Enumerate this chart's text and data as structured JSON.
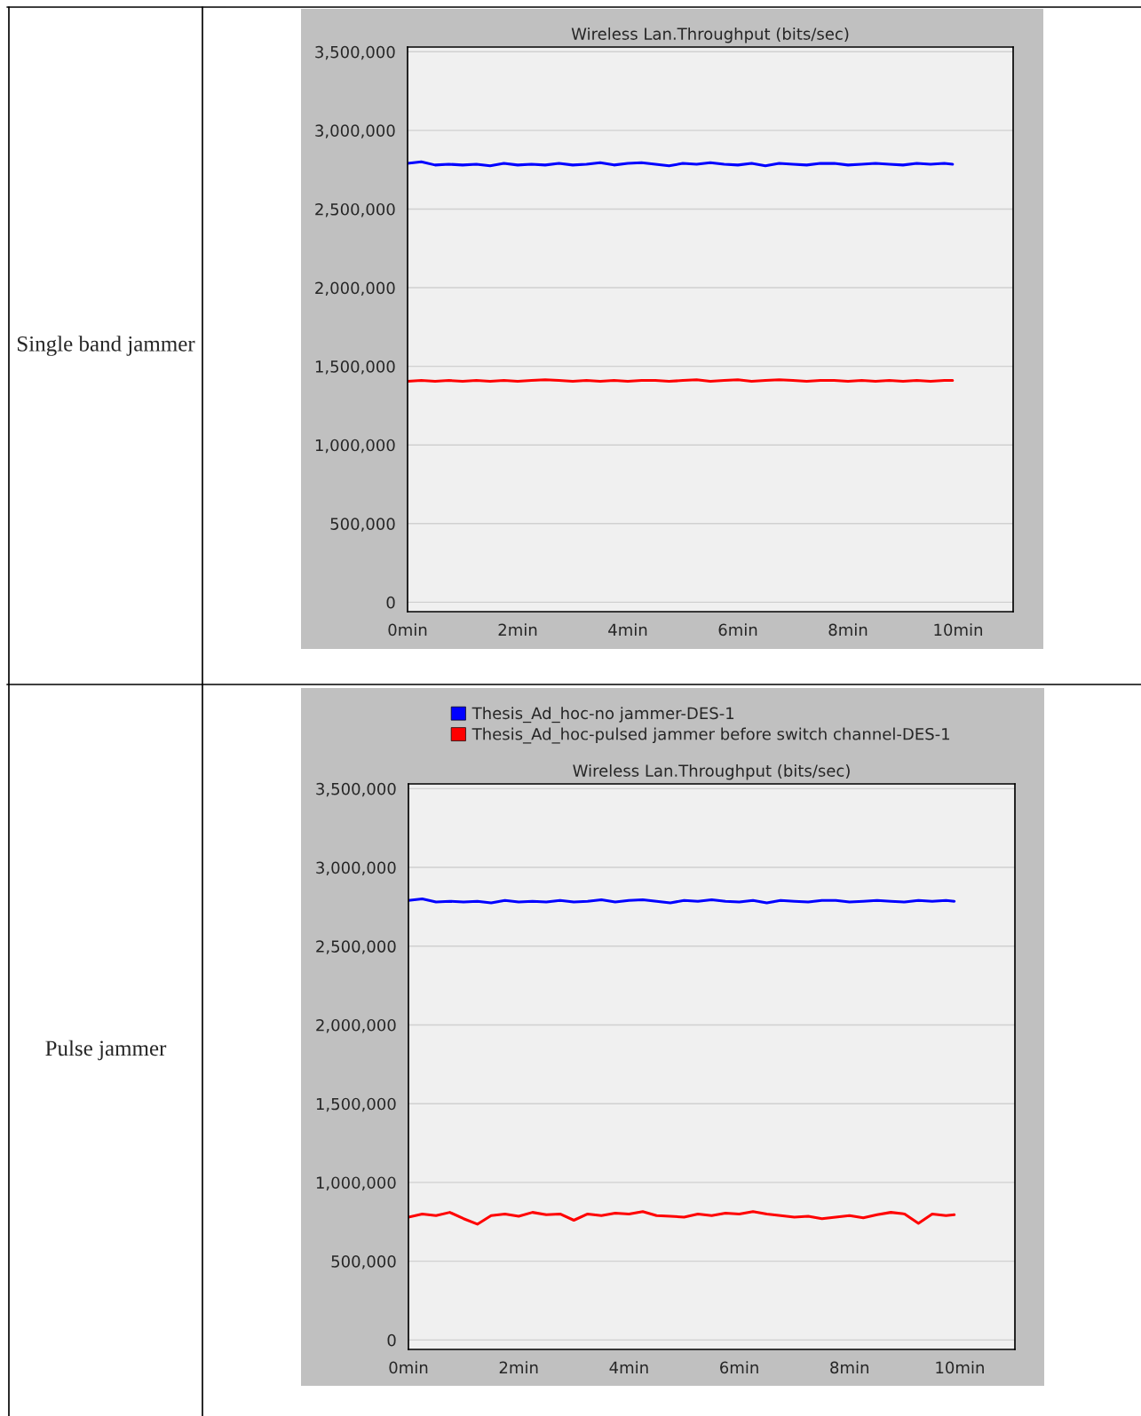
{
  "chart_data": [
    {
      "type": "line",
      "title": "Wireless Lan.Throughput (bits/sec)",
      "annotations": [
        "Single band jammer"
      ],
      "x": [
        0,
        0.25,
        0.5,
        0.75,
        1,
        1.25,
        1.5,
        1.75,
        2,
        2.25,
        2.5,
        2.75,
        3,
        3.25,
        3.5,
        3.75,
        4,
        4.25,
        4.5,
        4.75,
        5,
        5.25,
        5.5,
        5.75,
        6,
        6.25,
        6.5,
        6.75,
        7,
        7.25,
        7.5,
        7.75,
        8,
        8.25,
        8.5,
        8.75,
        9,
        9.25,
        9.5,
        9.75,
        9.9
      ],
      "series": [
        {
          "color": "#0000ff",
          "values": [
            2790000,
            2800000,
            2780000,
            2785000,
            2780000,
            2785000,
            2775000,
            2790000,
            2780000,
            2785000,
            2780000,
            2790000,
            2780000,
            2785000,
            2795000,
            2780000,
            2790000,
            2795000,
            2785000,
            2775000,
            2790000,
            2785000,
            2795000,
            2785000,
            2780000,
            2790000,
            2775000,
            2790000,
            2785000,
            2780000,
            2790000,
            2790000,
            2780000,
            2785000,
            2790000,
            2785000,
            2780000,
            2790000,
            2785000,
            2790000,
            2785000
          ]
        },
        {
          "color": "#ff0000",
          "values": [
            1405000,
            1410000,
            1405000,
            1410000,
            1405000,
            1410000,
            1405000,
            1410000,
            1405000,
            1410000,
            1415000,
            1410000,
            1405000,
            1410000,
            1405000,
            1410000,
            1405000,
            1410000,
            1410000,
            1405000,
            1410000,
            1415000,
            1405000,
            1410000,
            1415000,
            1405000,
            1410000,
            1415000,
            1410000,
            1405000,
            1410000,
            1410000,
            1405000,
            1410000,
            1405000,
            1410000,
            1405000,
            1410000,
            1405000,
            1410000,
            1410000
          ]
        }
      ],
      "xlim": [
        0,
        11
      ],
      "xticks": [
        {
          "value": 0,
          "label": "0min"
        },
        {
          "value": 2,
          "label": "2min"
        },
        {
          "value": 4,
          "label": "4min"
        },
        {
          "value": 6,
          "label": "6min"
        },
        {
          "value": 8,
          "label": "8min"
        },
        {
          "value": 10,
          "label": "10min"
        }
      ],
      "ylim": [
        -60000,
        3530000
      ],
      "yticks": [
        0,
        {
          "value": 500000,
          "label": "500,000"
        },
        {
          "value": 1000000,
          "label": "1,000,000"
        },
        {
          "value": 1500000,
          "label": "1,500,000"
        },
        {
          "value": 2000000,
          "label": "2,000,000"
        },
        {
          "value": 2500000,
          "label": "2,500,000"
        },
        {
          "value": 3000000,
          "label": "3,000,000"
        },
        {
          "value": 3500000,
          "label": "3,500,000"
        }
      ],
      "grid": "y"
    },
    {
      "type": "line",
      "title": "Wireless Lan.Throughput (bits/sec)",
      "annotations": [
        "Pulse jammer"
      ],
      "x": [
        0,
        0.25,
        0.5,
        0.75,
        1,
        1.25,
        1.5,
        1.75,
        2,
        2.25,
        2.5,
        2.75,
        3,
        3.25,
        3.5,
        3.75,
        4,
        4.25,
        4.5,
        4.75,
        5,
        5.25,
        5.5,
        5.75,
        6,
        6.25,
        6.5,
        6.75,
        7,
        7.25,
        7.5,
        7.75,
        8,
        8.25,
        8.5,
        8.75,
        9,
        9.25,
        9.5,
        9.75,
        9.9
      ],
      "series": [
        {
          "name": "Thesis_Ad_hoc-no jammer-DES-1",
          "color": "#0000ff",
          "values": [
            2790000,
            2800000,
            2780000,
            2785000,
            2780000,
            2785000,
            2775000,
            2790000,
            2780000,
            2785000,
            2780000,
            2790000,
            2780000,
            2785000,
            2795000,
            2780000,
            2790000,
            2795000,
            2785000,
            2775000,
            2790000,
            2785000,
            2795000,
            2785000,
            2780000,
            2790000,
            2775000,
            2790000,
            2785000,
            2780000,
            2790000,
            2790000,
            2780000,
            2785000,
            2790000,
            2785000,
            2780000,
            2790000,
            2785000,
            2790000,
            2785000
          ]
        },
        {
          "name": "Thesis_Ad_hoc-pulsed jammer before switch channel-DES-1",
          "color": "#ff0000",
          "values": [
            780000,
            800000,
            790000,
            810000,
            770000,
            735000,
            790000,
            800000,
            785000,
            810000,
            795000,
            800000,
            760000,
            800000,
            790000,
            805000,
            800000,
            815000,
            790000,
            785000,
            780000,
            800000,
            790000,
            805000,
            800000,
            815000,
            800000,
            790000,
            780000,
            785000,
            770000,
            780000,
            790000,
            775000,
            795000,
            810000,
            800000,
            740000,
            800000,
            790000,
            795000
          ]
        }
      ],
      "xlim": [
        0,
        11
      ],
      "xticks": [
        {
          "value": 0,
          "label": "0min"
        },
        {
          "value": 2,
          "label": "2min"
        },
        {
          "value": 4,
          "label": "4min"
        },
        {
          "value": 6,
          "label": "6min"
        },
        {
          "value": 8,
          "label": "8min"
        },
        {
          "value": 10,
          "label": "10min"
        }
      ],
      "ylim": [
        -60000,
        3530000
      ],
      "yticks": [
        0,
        {
          "value": 500000,
          "label": "500,000"
        },
        {
          "value": 1000000,
          "label": "1,000,000"
        },
        {
          "value": 1500000,
          "label": "1,500,000"
        },
        {
          "value": 2000000,
          "label": "2,000,000"
        },
        {
          "value": 2500000,
          "label": "2,500,000"
        },
        {
          "value": 3000000,
          "label": "3,000,000"
        },
        {
          "value": 3500000,
          "label": "3,500,000"
        }
      ],
      "grid": "y",
      "legend": "top"
    }
  ]
}
